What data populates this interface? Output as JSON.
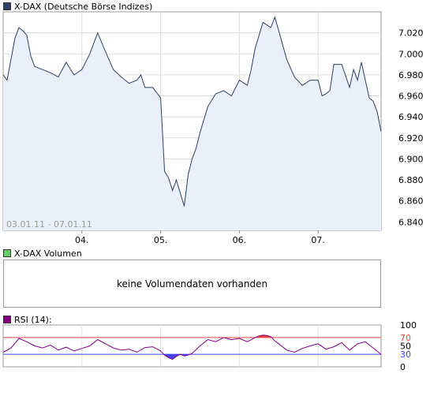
{
  "price_panel": {
    "legend_label": "X-DAX (Deutsche Börse Indizes)",
    "legend_color": "#2e3f66",
    "date_range": "03.01.11 - 07.01.11"
  },
  "volume_panel": {
    "legend_label": "X-DAX Volumen",
    "legend_color": "#66cc66",
    "message": "keine Volumendaten vorhanden"
  },
  "rsi_panel": {
    "legend_label": "RSI (14):",
    "legend_color": "#800080"
  },
  "chart_data": [
    {
      "type": "area",
      "x_tick_labels": [
        "04.",
        "05.",
        "06.",
        "07."
      ],
      "y_ticks": [
        6840,
        6860,
        6880,
        6900,
        6920,
        6940,
        6960,
        6980,
        7000,
        7020
      ],
      "y_tick_labels": [
        "6.840",
        "6.860",
        "6.880",
        "6.900",
        "6.920",
        "6.940",
        "6.960",
        "6.980",
        "7.000",
        "7.020"
      ],
      "ylim": [
        6832,
        7040
      ],
      "xlim": [
        0,
        4.8
      ],
      "grid": true,
      "line_color": "#2e3f66",
      "fill_color": "#eaf0fa",
      "series": [
        {
          "x": [
            0,
            0.05,
            0.1,
            0.15,
            0.2,
            0.25,
            0.3,
            0.35,
            0.4,
            0.5,
            0.6,
            0.7,
            0.8,
            0.9,
            1.0,
            1.1,
            1.2,
            1.3,
            1.4,
            1.5,
            1.55,
            1.6,
            1.7,
            1.75,
            1.8,
            1.9,
            2.0,
            2.05,
            2.1,
            2.15,
            2.2,
            2.3,
            2.35,
            2.4,
            2.45,
            2.5,
            2.6,
            2.7,
            2.8,
            2.9,
            3.0,
            3.1,
            3.15,
            3.2,
            3.3,
            3.4,
            3.45,
            3.5,
            3.6,
            3.7,
            3.8,
            3.9,
            4.0,
            4.05,
            4.1,
            4.15,
            4.2,
            4.3,
            4.4,
            4.45,
            4.5,
            4.55,
            4.6,
            4.65,
            4.7,
            4.75,
            4.8
          ],
          "values": [
            6980,
            6975,
            6995,
            7015,
            7025,
            7022,
            7018,
            6998,
            6988,
            6985,
            6982,
            6978,
            6992,
            6980,
            6985,
            7000,
            7020,
            7002,
            6985,
            6978,
            6975,
            6972,
            6975,
            6980,
            6968,
            6968,
            6958,
            6888,
            6882,
            6870,
            6880,
            6855,
            6885,
            6900,
            6910,
            6925,
            6950,
            6962,
            6965,
            6960,
            6975,
            6970,
            6985,
            7005,
            7030,
            7025,
            7035,
            7022,
            6995,
            6978,
            6970,
            6975,
            6975,
            6960,
            6962,
            6965,
            6990,
            6990,
            6968,
            6985,
            6975,
            6992,
            6975,
            6958,
            6955,
            6945,
            6926
          ]
        }
      ]
    },
    {
      "type": "line",
      "title": "RSI (14):",
      "y_ticks": [
        0,
        30,
        50,
        70,
        100
      ],
      "y_tick_labels": [
        "0",
        "30",
        "50",
        "70",
        "100"
      ],
      "ylim": [
        0,
        100
      ],
      "xlim": [
        0,
        4.8
      ],
      "reference_lines": [
        {
          "value": 70,
          "color": "#ee4444"
        },
        {
          "value": 30,
          "color": "#4444ee"
        }
      ],
      "overbought_fill": "#ee4444",
      "oversold_fill": "#4444ee",
      "line_color": "#800080",
      "series": [
        {
          "x": [
            0,
            0.1,
            0.2,
            0.3,
            0.4,
            0.5,
            0.6,
            0.7,
            0.8,
            0.9,
            1.0,
            1.1,
            1.2,
            1.3,
            1.4,
            1.5,
            1.6,
            1.7,
            1.8,
            1.9,
            2.0,
            2.05,
            2.1,
            2.15,
            2.2,
            2.25,
            2.3,
            2.35,
            2.4,
            2.5,
            2.6,
            2.7,
            2.8,
            2.9,
            3.0,
            3.1,
            3.2,
            3.25,
            3.3,
            3.35,
            3.4,
            3.45,
            3.5,
            3.6,
            3.7,
            3.8,
            3.9,
            4.0,
            4.1,
            4.2,
            4.3,
            4.4,
            4.5,
            4.6,
            4.7,
            4.8
          ],
          "values": [
            35,
            45,
            68,
            60,
            50,
            45,
            52,
            40,
            47,
            38,
            44,
            50,
            65,
            55,
            45,
            40,
            42,
            35,
            46,
            48,
            38,
            28,
            22,
            18,
            25,
            30,
            26,
            28,
            32,
            50,
            65,
            60,
            70,
            65,
            68,
            60,
            70,
            74,
            76,
            75,
            72,
            62,
            55,
            40,
            35,
            44,
            50,
            55,
            42,
            48,
            58,
            40,
            55,
            60,
            45,
            30
          ]
        }
      ]
    }
  ]
}
